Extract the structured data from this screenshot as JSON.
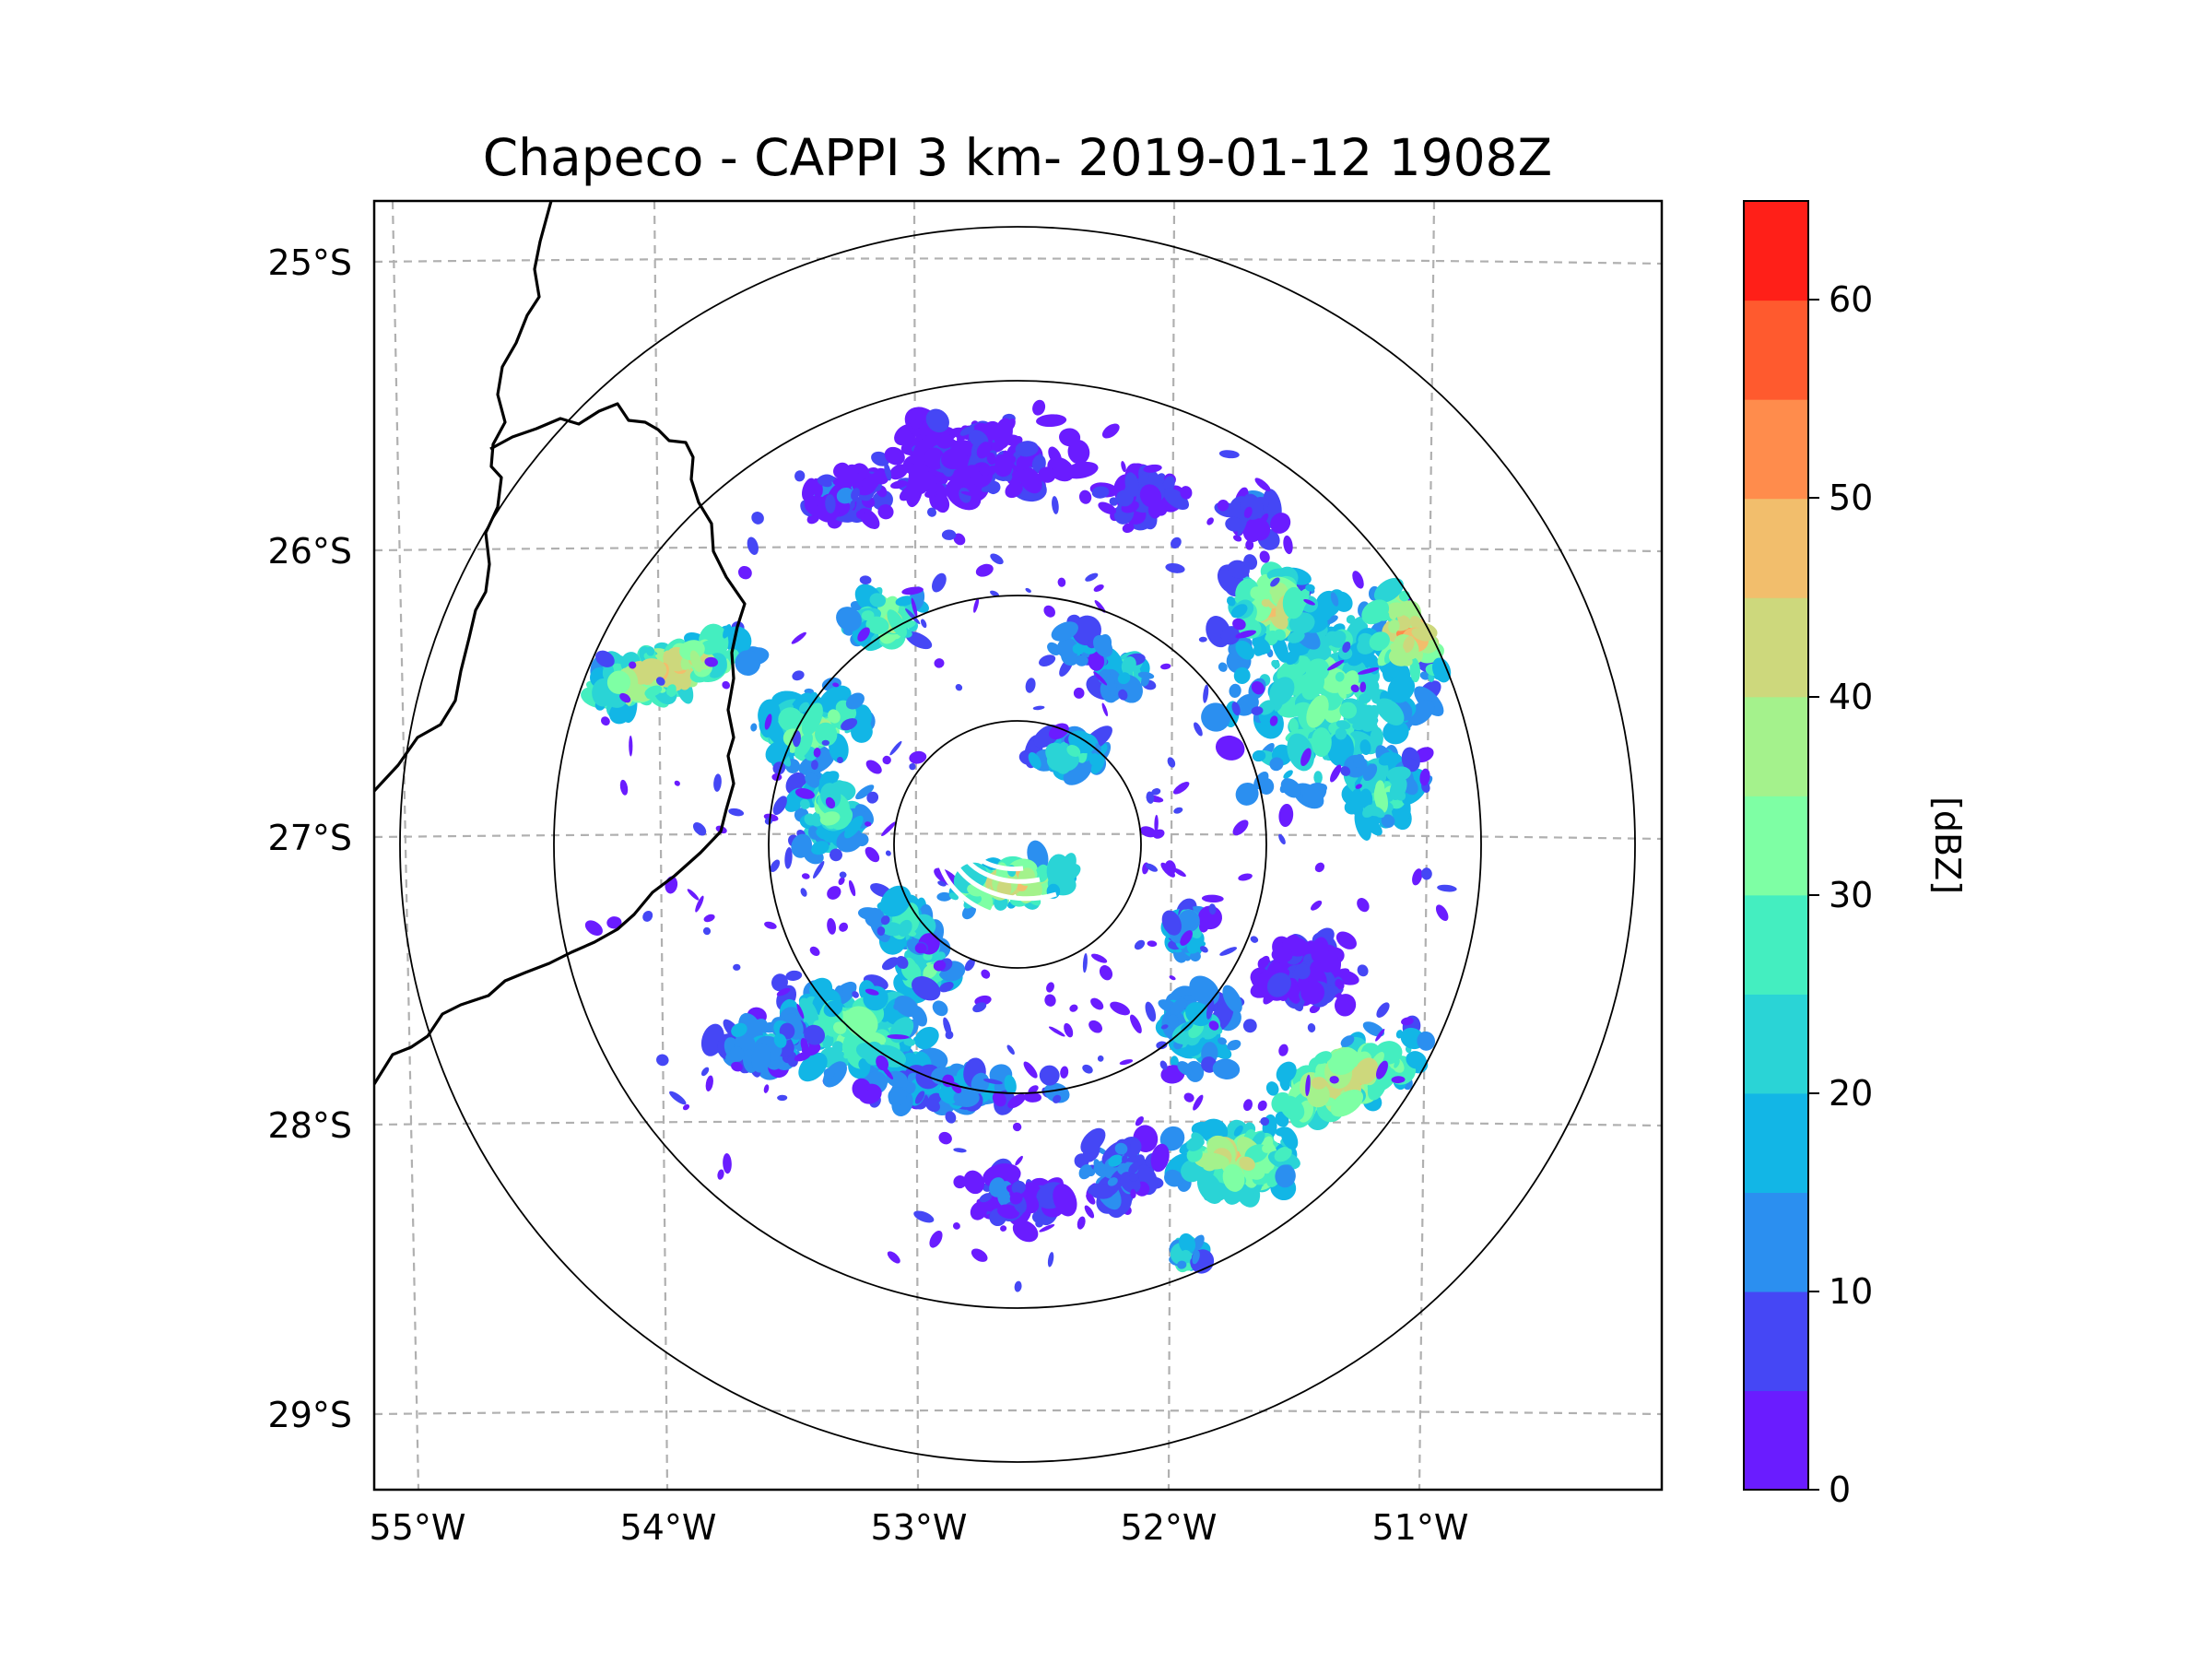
{
  "title": "Chapeco - CAPPI 3 km- 2019-01-12 1908Z",
  "map": {
    "lon_range": [
      -55.18,
      -50.05
    ],
    "lat_range": [
      -29.28,
      -24.78
    ],
    "lat_labels": [
      "25°S",
      "26°S",
      "27°S",
      "28°S",
      "29°S"
    ],
    "lon_labels": [
      "55°W",
      "54°W",
      "53°W",
      "52°W",
      "51°W"
    ],
    "radar_center": {
      "lon": -52.6,
      "lat": -27.03
    },
    "range_ring_count": 4
  },
  "colorbar": {
    "label": "[dBZ]",
    "tick_labels": [
      "0",
      "10",
      "20",
      "30",
      "40",
      "50",
      "60"
    ],
    "min": 0,
    "max": 65,
    "step": 5,
    "colors": [
      "#6a1cff",
      "#4547f5",
      "#2b8ff0",
      "#12b6e6",
      "#2ad4d6",
      "#44eec0",
      "#7effa4",
      "#a4f28c",
      "#cdd87c",
      "#f2be6c",
      "#ff8c4c",
      "#ff5a2e",
      "#ff1f18"
    ]
  }
}
